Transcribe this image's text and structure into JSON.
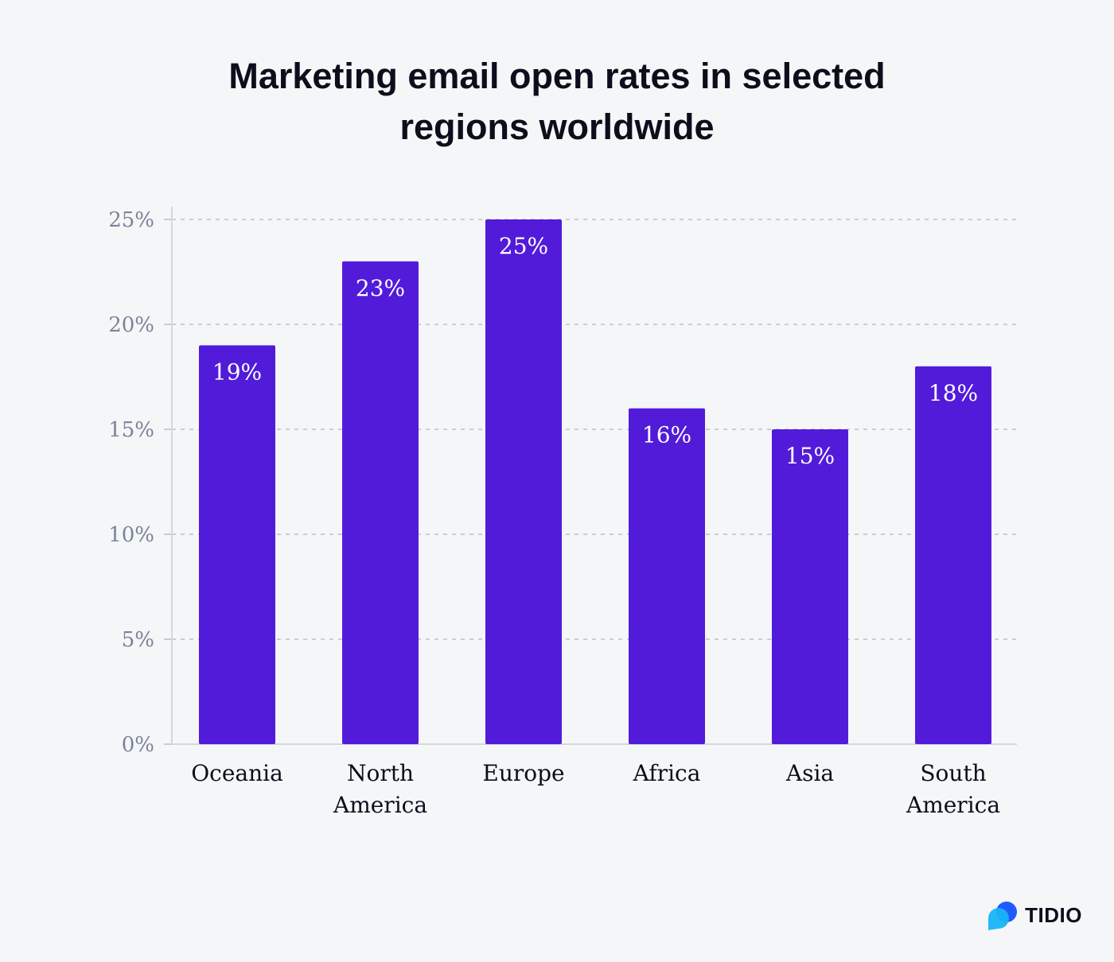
{
  "chart_data": {
    "type": "bar",
    "title": "Marketing email open rates in selected regions worldwide",
    "xlabel": "",
    "ylabel": "",
    "categories": [
      [
        "Oceania"
      ],
      [
        "North",
        "America"
      ],
      [
        "Europe"
      ],
      [
        "Africa"
      ],
      [
        "Asia"
      ],
      [
        "South",
        "America"
      ]
    ],
    "values": [
      19,
      23,
      25,
      16,
      15,
      18
    ],
    "data_labels": [
      "19%",
      "23%",
      "25%",
      "16%",
      "15%",
      "18%"
    ],
    "ylim": [
      0,
      25
    ],
    "yticks": [
      0,
      5,
      10,
      15,
      20,
      25
    ],
    "ytick_labels": [
      "0%",
      "5%",
      "10%",
      "15%",
      "20%",
      "25%"
    ],
    "grid": true,
    "bar_color": "#521bd9",
    "grid_color": "#b9bfcc"
  },
  "brand": {
    "name": "TIDIO",
    "colors": [
      "#1e5bff",
      "#19b4f5"
    ]
  }
}
